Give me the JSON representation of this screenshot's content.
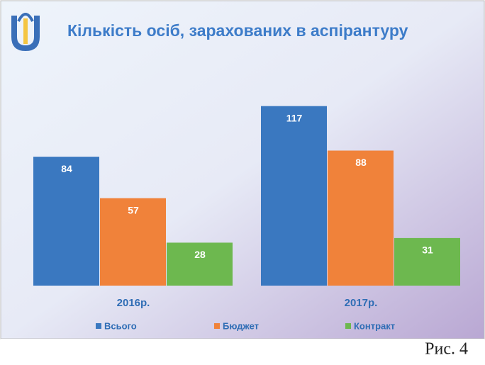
{
  "chart_data": {
    "type": "bar",
    "title": "Кількість осіб, зарахованих в аспірантуру",
    "categories": [
      "2016р.",
      "2017р."
    ],
    "series": [
      {
        "name": "Всього",
        "color": "#3a78c0",
        "values": [
          84,
          117
        ]
      },
      {
        "name": "Бюджет",
        "color": "#f0823a",
        "values": [
          57,
          88
        ]
      },
      {
        "name": "Контракт",
        "color": "#6db84f",
        "values": [
          28,
          31
        ]
      }
    ],
    "legend": "bottom"
  },
  "caption": "Рис. 4"
}
